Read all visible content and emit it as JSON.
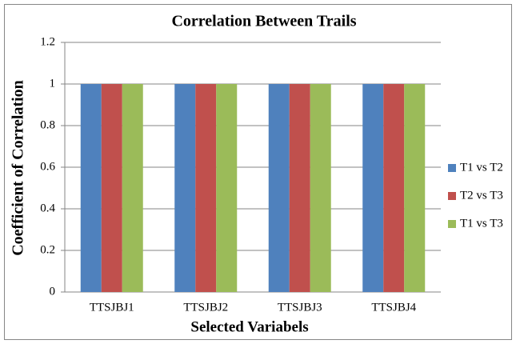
{
  "chart_data": {
    "type": "bar",
    "title": "Correlation Between Trails",
    "x_label": "Selected Variabels",
    "y_label": "Coefficient of Correlation",
    "categories": [
      "TTSJBJ1",
      "TTSJBJ2",
      "TTSJBJ3",
      "TTSJBJ4"
    ],
    "series": [
      {
        "name": "T1 vs T2",
        "color": "#4f81bd",
        "values": [
          1,
          1,
          1,
          1
        ]
      },
      {
        "name": "T2 vs T3",
        "color": "#c0504d",
        "values": [
          1,
          1,
          1,
          1
        ]
      },
      {
        "name": "T1 vs T3",
        "color": "#9bbb59",
        "values": [
          1,
          1,
          1,
          1
        ]
      }
    ],
    "ylim": [
      0,
      1.2
    ],
    "yticks": [
      0,
      0.2,
      0.4,
      0.6,
      0.8,
      1,
      1.2
    ],
    "grid": true,
    "legend": "right"
  }
}
